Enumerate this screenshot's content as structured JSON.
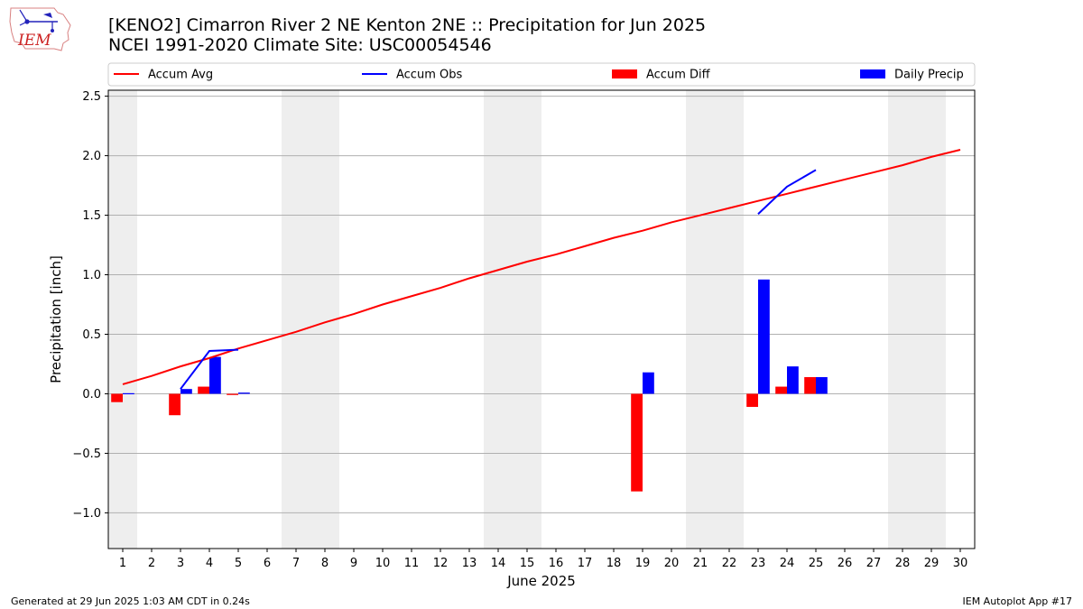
{
  "header": {
    "title_line1": "[KENO2] Cimarron River 2 NE Kenton 2NE :: Precipitation for Jun 2025",
    "title_line2": "NCEI 1991-2020 Climate Site: USC00054546"
  },
  "logo": {
    "text": "IEM"
  },
  "footer": {
    "left": "Generated at 29 Jun 2025 1:03 AM CDT in 0.24s",
    "right": "IEM Autoplot App #17"
  },
  "colors": {
    "avg": "#ff0000",
    "obs": "#0000ff",
    "diff": "#ff0000",
    "daily": "#0000ff",
    "weekend": "#eeeeee",
    "grid": "#b0b0b0"
  },
  "chart_data": {
    "type": "bar",
    "xlabel": "June 2025",
    "ylabel": "Precipitation [inch]",
    "ylim": [
      -1.3,
      2.55
    ],
    "yticks": [
      -1.0,
      -0.5,
      0.0,
      0.5,
      1.0,
      1.5,
      2.0,
      2.5
    ],
    "ytick_labels": [
      "−1.0",
      "−0.5",
      "0.0",
      "0.5",
      "1.0",
      "1.5",
      "2.0",
      "2.5"
    ],
    "days": [
      1,
      2,
      3,
      4,
      5,
      6,
      7,
      8,
      9,
      10,
      11,
      12,
      13,
      14,
      15,
      16,
      17,
      18,
      19,
      20,
      21,
      22,
      23,
      24,
      25,
      26,
      27,
      28,
      29,
      30
    ],
    "weekend_days": [
      1,
      7,
      8,
      14,
      15,
      21,
      22,
      28,
      29
    ],
    "grid": "horizontal",
    "legend_position": "top",
    "legend": [
      "Accum Avg",
      "Accum Obs",
      "Accum Diff",
      "Daily Precip"
    ],
    "accum_avg": [
      0.08,
      0.15,
      0.23,
      0.3,
      0.38,
      0.45,
      0.52,
      0.6,
      0.67,
      0.75,
      0.82,
      0.89,
      0.97,
      1.04,
      1.11,
      1.17,
      1.24,
      1.31,
      1.37,
      1.44,
      1.5,
      1.56,
      1.62,
      1.68,
      1.74,
      1.8,
      1.86,
      1.92,
      1.99,
      2.05
    ],
    "accum_obs": [
      {
        "day": 3,
        "value": 0.04
      },
      {
        "day": 4,
        "value": 0.36
      },
      {
        "day": 5,
        "value": 0.37
      },
      null,
      {
        "day": 23,
        "value": 1.51
      },
      {
        "day": 24,
        "value": 1.74
      },
      {
        "day": 25,
        "value": 1.88
      }
    ],
    "accum_diff": [
      {
        "day": 1,
        "value": -0.07
      },
      {
        "day": 3,
        "value": -0.18
      },
      {
        "day": 4,
        "value": 0.06
      },
      {
        "day": 5,
        "value": -0.01
      },
      {
        "day": 19,
        "value": -0.82
      },
      {
        "day": 23,
        "value": -0.11
      },
      {
        "day": 24,
        "value": 0.06
      },
      {
        "day": 25,
        "value": 0.14
      }
    ],
    "daily_precip": [
      {
        "day": 1,
        "value": 0.005
      },
      {
        "day": 3,
        "value": 0.04
      },
      {
        "day": 4,
        "value": 0.31
      },
      {
        "day": 5,
        "value": 0.01
      },
      {
        "day": 19,
        "value": 0.18
      },
      {
        "day": 23,
        "value": 0.96
      },
      {
        "day": 24,
        "value": 0.23
      },
      {
        "day": 25,
        "value": 0.14
      }
    ]
  }
}
